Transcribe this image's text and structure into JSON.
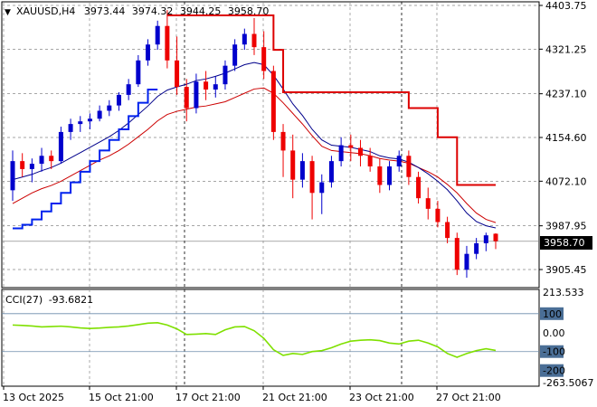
{
  "header": {
    "symbol": "XAUUSD,H4",
    "open": "3973.44",
    "high": "3974.32",
    "low": "3944.25",
    "close": "3958.70"
  },
  "indicator": {
    "name": "CCI(27)",
    "value": "-93.6821",
    "scale": [
      "213.533",
      "100",
      "0.00",
      "-100",
      "-200",
      "-263.5067"
    ]
  },
  "colors": {
    "bull": "#0000cc",
    "bear": "#ee0000",
    "ma_fast": "#00008b",
    "ma_slow": "#cc0000",
    "cci": "#7fe000",
    "grid": "#888888",
    "price_tag_bg": "#000000",
    "label_bg": "#4a6e96"
  },
  "chart_data": {
    "type": "candlestick",
    "price_axis": [
      "4403.75",
      "4321.25",
      "4237.10",
      "4154.60",
      "4072.10",
      "3987.95",
      "3905.45"
    ],
    "current_price": "3958.70",
    "ylim": [
      3870,
      4410
    ],
    "time_axis": [
      "13 Oct 2025",
      "15 Oct 21:00",
      "17 Oct 21:00",
      "21 Oct 21:00",
      "23 Oct 21:00",
      "27 Oct 21:00"
    ],
    "candles": [
      [
        4055,
        4130,
        4035,
        4110
      ],
      [
        4110,
        4125,
        4080,
        4095
      ],
      [
        4095,
        4115,
        4070,
        4105
      ],
      [
        4105,
        4135,
        4090,
        4120
      ],
      [
        4120,
        4130,
        4095,
        4110
      ],
      [
        4110,
        4175,
        4105,
        4165
      ],
      [
        4165,
        4190,
        4150,
        4180
      ],
      [
        4180,
        4195,
        4165,
        4185
      ],
      [
        4185,
        4200,
        4170,
        4190
      ],
      [
        4190,
        4215,
        4185,
        4205
      ],
      [
        4205,
        4225,
        4195,
        4215
      ],
      [
        4215,
        4240,
        4205,
        4235
      ],
      [
        4235,
        4265,
        4225,
        4255
      ],
      [
        4255,
        4310,
        4250,
        4300
      ],
      [
        4300,
        4340,
        4290,
        4330
      ],
      [
        4330,
        4375,
        4320,
        4365
      ],
      [
        4365,
        4395,
        4285,
        4300
      ],
      [
        4300,
        4345,
        4235,
        4250
      ],
      [
        4250,
        4265,
        4185,
        4210
      ],
      [
        4210,
        4275,
        4200,
        4260
      ],
      [
        4260,
        4280,
        4225,
        4245
      ],
      [
        4245,
        4270,
        4230,
        4255
      ],
      [
        4255,
        4300,
        4245,
        4290
      ],
      [
        4290,
        4340,
        4280,
        4330
      ],
      [
        4330,
        4360,
        4320,
        4350
      ],
      [
        4350,
        4380,
        4310,
        4325
      ],
      [
        4325,
        4355,
        4265,
        4280
      ],
      [
        4280,
        4290,
        4150,
        4165
      ],
      [
        4165,
        4180,
        4080,
        4130
      ],
      [
        4130,
        4160,
        4040,
        4075
      ],
      [
        4075,
        4125,
        4060,
        4110
      ],
      [
        4110,
        4120,
        4000,
        4050
      ],
      [
        4050,
        4085,
        4010,
        4070
      ],
      [
        4070,
        4120,
        4060,
        4110
      ],
      [
        4110,
        4155,
        4100,
        4140
      ],
      [
        4140,
        4160,
        4110,
        4135
      ],
      [
        4135,
        4150,
        4100,
        4120
      ],
      [
        4120,
        4135,
        4090,
        4100
      ],
      [
        4100,
        4115,
        4050,
        4065
      ],
      [
        4065,
        4110,
        4055,
        4100
      ],
      [
        4100,
        4130,
        4090,
        4120
      ],
      [
        4120,
        4130,
        4065,
        4080
      ],
      [
        4080,
        4090,
        4030,
        4040
      ],
      [
        4040,
        4060,
        4000,
        4020
      ],
      [
        4020,
        4035,
        3985,
        3995
      ],
      [
        3995,
        4005,
        3955,
        3965
      ],
      [
        3965,
        3975,
        3895,
        3905
      ],
      [
        3905,
        3950,
        3890,
        3935
      ],
      [
        3935,
        3965,
        3925,
        3955
      ],
      [
        3955,
        3975,
        3940,
        3970
      ],
      [
        3973,
        3974,
        3944,
        3959
      ]
    ],
    "ma_fast": [
      4075,
      4080,
      4085,
      4092,
      4098,
      4106,
      4116,
      4126,
      4136,
      4146,
      4156,
      4168,
      4182,
      4198,
      4214,
      4232,
      4244,
      4250,
      4255,
      4262,
      4265,
      4270,
      4276,
      4284,
      4292,
      4296,
      4292,
      4272,
      4246,
      4218,
      4196,
      4170,
      4150,
      4140,
      4138,
      4136,
      4132,
      4128,
      4120,
      4116,
      4114,
      4108,
      4098,
      4086,
      4072,
      4056,
      4035,
      4012,
      3996,
      3988,
      3984
    ],
    "ma_slow": [
      4030,
      4040,
      4050,
      4058,
      4064,
      4072,
      4082,
      4092,
      4102,
      4112,
      4120,
      4130,
      4142,
      4156,
      4170,
      4186,
      4198,
      4204,
      4208,
      4212,
      4214,
      4218,
      4222,
      4230,
      4238,
      4246,
      4248,
      4238,
      4220,
      4200,
      4180,
      4158,
      4138,
      4130,
      4128,
      4126,
      4124,
      4120,
      4115,
      4112,
      4110,
      4106,
      4098,
      4090,
      4080,
      4066,
      4050,
      4030,
      4012,
      4000,
      3994
    ],
    "envelope_low": [
      3983,
      3990,
      4000,
      4015,
      4030,
      4050,
      4070,
      4090,
      4110,
      4130,
      4150,
      4170,
      4195,
      4220,
      4245,
      4245,
      null,
      null,
      null,
      null,
      null,
      null,
      null,
      null,
      null,
      null,
      null,
      null,
      null,
      null,
      null,
      null,
      null,
      null,
      null,
      null,
      null,
      null,
      null,
      null,
      null,
      null,
      null,
      null,
      null,
      null,
      null,
      null,
      null,
      null,
      null
    ],
    "stop_line": [
      null,
      null,
      null,
      null,
      null,
      null,
      null,
      null,
      null,
      null,
      null,
      null,
      null,
      null,
      null,
      null,
      4385,
      4385,
      4385,
      4385,
      4385,
      4385,
      4385,
      4385,
      4385,
      4385,
      4385,
      4320,
      4240,
      4240,
      4240,
      4240,
      4240,
      4240,
      4240,
      4240,
      4240,
      4240,
      4240,
      4240,
      4240,
      4210,
      4210,
      4210,
      4155,
      4155,
      4065,
      4065,
      4065,
      4065,
      4065
    ],
    "cci": [
      40,
      38,
      35,
      30,
      32,
      34,
      30,
      25,
      22,
      24,
      28,
      30,
      35,
      42,
      50,
      52,
      40,
      20,
      -10,
      -8,
      -5,
      -10,
      15,
      30,
      32,
      10,
      -30,
      -90,
      -120,
      -110,
      -115,
      -100,
      -95,
      -80,
      -60,
      -45,
      -40,
      -38,
      -42,
      -55,
      -60,
      -45,
      -40,
      -55,
      -75,
      -110,
      -130,
      -110,
      -95,
      -85,
      -93.68
    ]
  }
}
